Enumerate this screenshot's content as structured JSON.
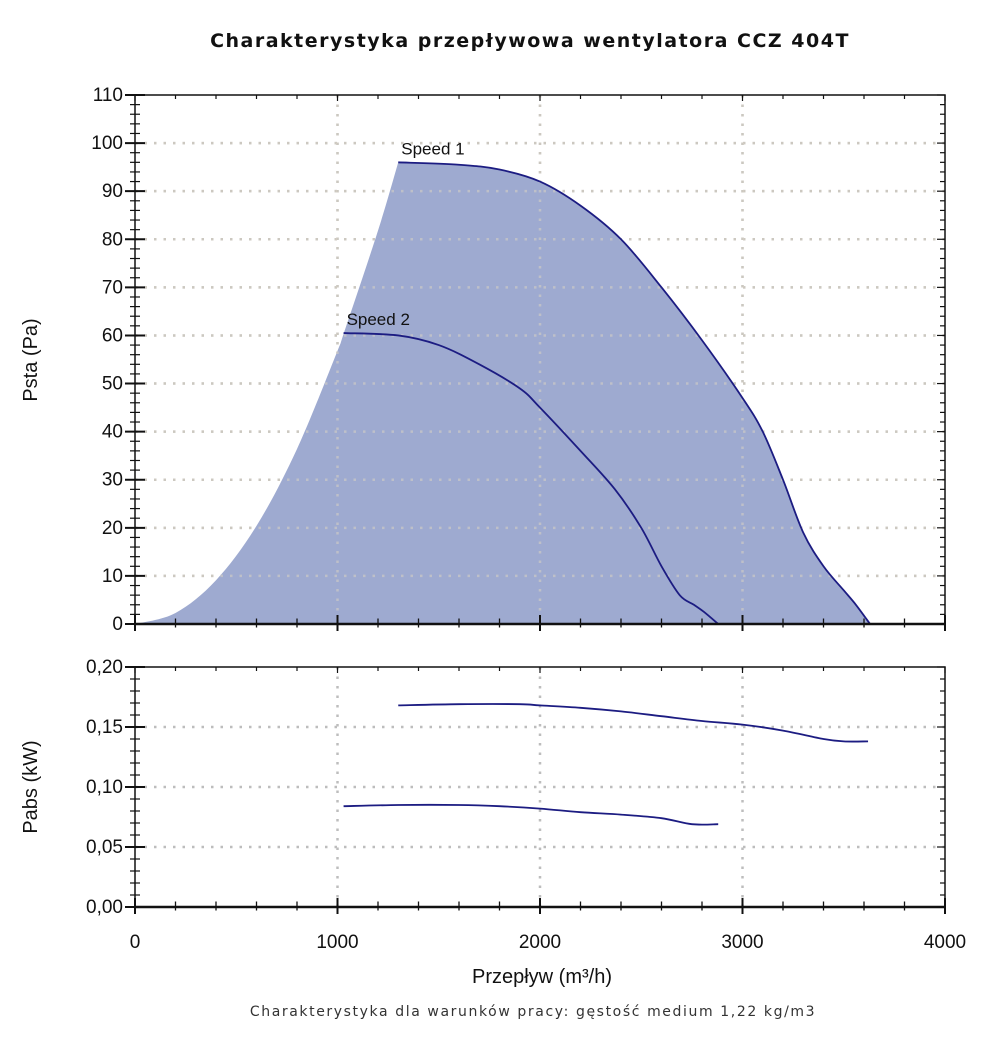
{
  "chart_data": [
    {
      "type": "area",
      "title": "Charakterystyka przepływowa wentylatora CCZ 404T",
      "ylabel": "Psta (Pa)",
      "xlim": [
        0,
        4000
      ],
      "ylim": [
        0,
        110
      ],
      "yticks": [
        "0",
        "10",
        "20",
        "30",
        "40",
        "50",
        "60",
        "70",
        "80",
        "90",
        "100",
        "110"
      ],
      "grid": true,
      "fill_color": "#9eaad0",
      "line_color": "#1c1c82",
      "envelope_left": {
        "x": [
          0,
          200,
          400,
          600,
          800,
          1000,
          1030,
          1200,
          1300
        ],
        "y": [
          0,
          2.3,
          9.1,
          20.4,
          36.4,
          56.8,
          60.3,
          81.8,
          96
        ]
      },
      "series": [
        {
          "name": "Speed 1",
          "x": [
            1300,
            1600,
            1800,
            2000,
            2200,
            2400,
            2600,
            2800,
            3000,
            3100,
            3200,
            3300,
            3400,
            3500,
            3560,
            3630
          ],
          "y": [
            96,
            95.5,
            94.5,
            92,
            87,
            80,
            70,
            59,
            47,
            40,
            30,
            19,
            12,
            7,
            4,
            0
          ]
        },
        {
          "name": "Speed 2",
          "x": [
            1030,
            1300,
            1500,
            1700,
            1900,
            2000,
            2200,
            2370,
            2500,
            2600,
            2690,
            2760,
            2810,
            2880
          ],
          "y": [
            60.5,
            60,
            58,
            54,
            49,
            45,
            36,
            28,
            20,
            12,
            6,
            4,
            2.5,
            0
          ]
        }
      ]
    },
    {
      "type": "line",
      "ylabel": "Pabs (kW)",
      "xlabel": "Przepływ (m³/h)",
      "xlim": [
        0,
        4000
      ],
      "ylim": [
        0,
        0.2
      ],
      "xticks": [
        "0",
        "1000",
        "2000",
        "3000",
        "4000"
      ],
      "yticks": [
        "0,00",
        "0,05",
        "0,10",
        "0,15",
        "0,20"
      ],
      "grid": true,
      "line_color": "#1c1c82",
      "series": [
        {
          "x": [
            1300,
            1600,
            1900,
            2000,
            2200,
            2400,
            2600,
            2800,
            3000,
            3200,
            3400,
            3500,
            3620
          ],
          "y": [
            0.168,
            0.169,
            0.169,
            0.168,
            0.166,
            0.163,
            0.159,
            0.155,
            0.152,
            0.147,
            0.14,
            0.138,
            0.138
          ]
        },
        {
          "x": [
            1030,
            1300,
            1600,
            1800,
            2000,
            2200,
            2400,
            2600,
            2750,
            2880
          ],
          "y": [
            0.084,
            0.085,
            0.085,
            0.084,
            0.082,
            0.079,
            0.077,
            0.074,
            0.069,
            0.069
          ]
        }
      ]
    }
  ],
  "footer": "Charakterystyka dla warunków pracy: gęstość medium 1,22 kg/m3"
}
